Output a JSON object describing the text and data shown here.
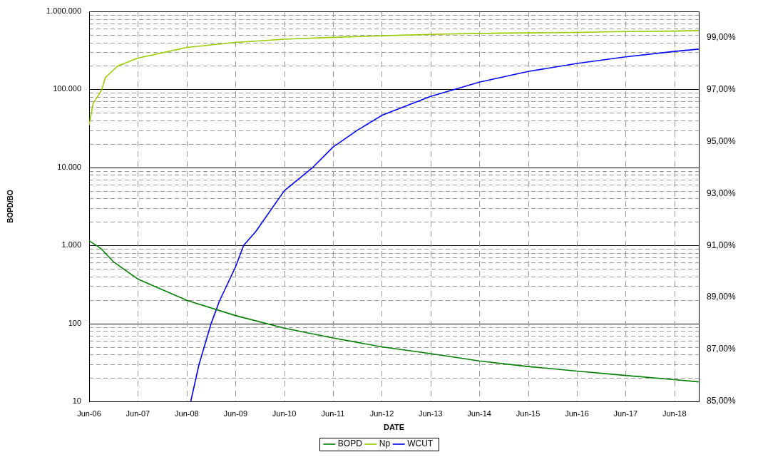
{
  "chart_data": {
    "type": "line",
    "xlabel": "DATE",
    "ylabel": "BOPD/BO",
    "xlim": [
      "2006-06",
      "2018-12"
    ],
    "xticks": [
      {
        "value": "2006-06",
        "label": "Jun-06"
      },
      {
        "value": "2007-06",
        "label": "Jun-07"
      },
      {
        "value": "2008-06",
        "label": "Jun-08"
      },
      {
        "value": "2009-06",
        "label": "Jun-09"
      },
      {
        "value": "2010-06",
        "label": "Jun-10"
      },
      {
        "value": "2011-06",
        "label": "Jun-11"
      },
      {
        "value": "2012-06",
        "label": "Jun-12"
      },
      {
        "value": "2013-06",
        "label": "Jun-13"
      },
      {
        "value": "2014-06",
        "label": "Jun-14"
      },
      {
        "value": "2015-06",
        "label": "Jun-15"
      },
      {
        "value": "2016-06",
        "label": "Jun-16"
      },
      {
        "value": "2017-06",
        "label": "Jun-17"
      },
      {
        "value": "2018-06",
        "label": "Jun-18"
      }
    ],
    "log": "y",
    "ylim": [
      10,
      1000000
    ],
    "yticks": [
      10,
      100,
      {
        "value": 1000,
        "label": "1.000"
      },
      {
        "value": 10000,
        "label": "10.000"
      },
      {
        "value": 100000,
        "label": "100.000"
      },
      {
        "value": 1000000,
        "label": "1.000.000"
      }
    ],
    "y2lim": [
      85,
      100
    ],
    "y2ticks": [
      {
        "value": 85,
        "label": "85,00%"
      },
      {
        "value": 87,
        "label": "87,00%"
      },
      {
        "value": 89,
        "label": "89,00%"
      },
      {
        "value": 91,
        "label": "91,00%"
      },
      {
        "value": 93,
        "label": "93,00%"
      },
      {
        "value": 95,
        "label": "95,00%"
      },
      {
        "value": 97,
        "label": "97,00%"
      },
      {
        "value": 99,
        "label": "99,00%"
      }
    ],
    "grid": true,
    "legend": "bottom",
    "marker": "none",
    "line_style": "solid",
    "series": [
      {
        "name": "BOPD",
        "color": "#008000",
        "x": [
          "2006-06",
          "2006-09",
          "2006-12",
          "2007-06",
          "2008-06",
          "2009-06",
          "2010-06",
          "2011-06",
          "2012-06",
          "2013-06",
          "2014-06",
          "2015-06",
          "2016-06",
          "2017-06",
          "2018-06",
          "2018-12"
        ],
        "values": [
          1150,
          900,
          615,
          370,
          198,
          126,
          87,
          65,
          50,
          41,
          33,
          28,
          24.5,
          21.5,
          19,
          17.8
        ]
      },
      {
        "name": "Np",
        "color": "#99cc00",
        "x": [
          "2006-06",
          "2006-07",
          "2006-09",
          "2006-10",
          "2007-01",
          "2007-06",
          "2008-06",
          "2009-06",
          "2010-06",
          "2011-06",
          "2012-06",
          "2013-06",
          "2014-06",
          "2015-06",
          "2016-06",
          "2017-06",
          "2018-06",
          "2018-12"
        ],
        "values": [
          35000,
          66000,
          97000,
          142000,
          200000,
          252000,
          345000,
          400000,
          440000,
          465000,
          488000,
          507000,
          522000,
          530000,
          538000,
          551000,
          559000,
          568000
        ]
      },
      {
        "name": "WCUT",
        "color": "#0000ff",
        "axis": "y2",
        "x": [
          "2008-07",
          "2008-09",
          "2008-12",
          "2009-02",
          "2009-06",
          "2009-08",
          "2009-11",
          "2010-06",
          "2011-01",
          "2011-06",
          "2011-12",
          "2012-06",
          "2013-06",
          "2014-06",
          "2015-06",
          "2016-06",
          "2017-06",
          "2018-06",
          "2018-12"
        ],
        "values": [
          85.0,
          86.42,
          88.0,
          88.86,
          90.17,
          91.0,
          91.54,
          93.1,
          94.0,
          94.78,
          95.43,
          96.0,
          96.73,
          97.28,
          97.69,
          98.0,
          98.25,
          98.46,
          98.55
        ]
      }
    ]
  }
}
